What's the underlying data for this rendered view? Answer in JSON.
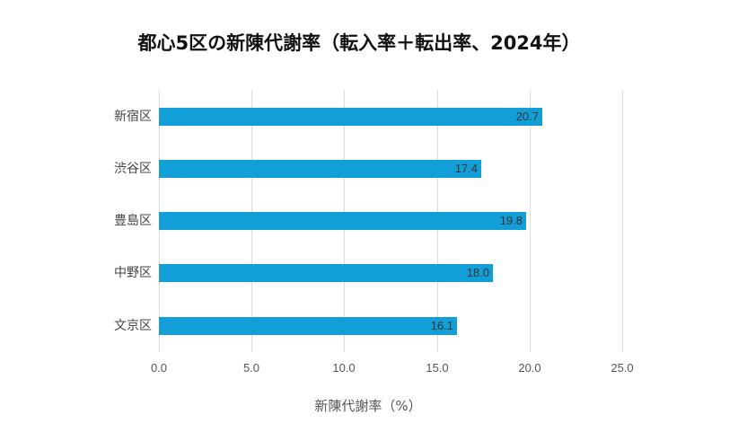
{
  "chart_data": {
    "type": "bar",
    "orientation": "horizontal",
    "title": "都心5区の新陳代謝率（転入率＋転出率、2024年）",
    "categories": [
      "新宿区",
      "渋谷区",
      "豊島区",
      "中野区",
      "文京区"
    ],
    "values": [
      20.7,
      17.4,
      19.8,
      18.0,
      16.1
    ],
    "value_labels": [
      "20.7",
      "17.4",
      "19.8",
      "18.0",
      "16.1"
    ],
    "xlabel": "新陳代謝率（%）",
    "ylabel": "",
    "xlim": [
      0,
      25
    ],
    "x_ticks": [
      "0.0",
      "5.0",
      "10.0",
      "15.0",
      "20.0",
      "25.0"
    ],
    "grid": true,
    "legend": null,
    "bar_color": "#129fd8"
  }
}
